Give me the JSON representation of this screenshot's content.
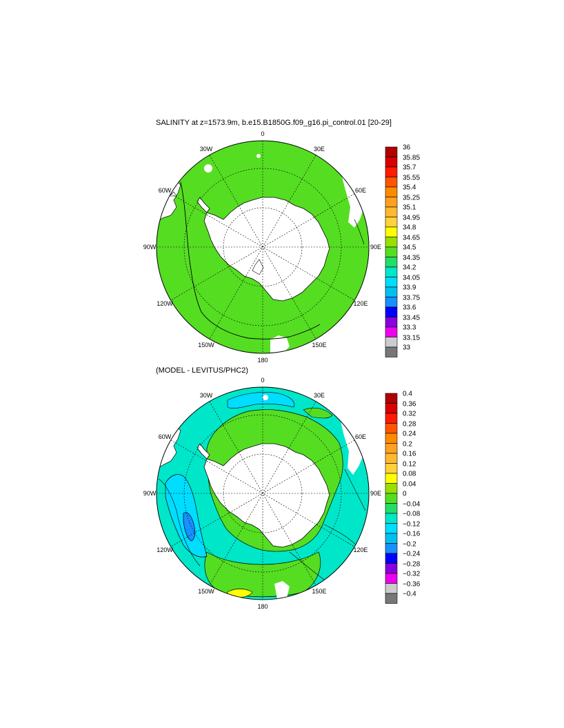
{
  "maps": [
    {
      "title": "SALINITY at z=1573.9m, b.e15.B1850G.f09_g16.pi_control.01 [20-29]",
      "lon_labels": [
        "0",
        "30E",
        "60E",
        "90E",
        "120E",
        "150E",
        "180",
        "150W",
        "120W",
        "90W",
        "60W",
        "30W"
      ],
      "colorbar_levels": [
        "36",
        "35.85",
        "35.7",
        "35.55",
        "35.4",
        "35.25",
        "35.1",
        "34.95",
        "34.8",
        "34.65",
        "34.5",
        "34.35",
        "34.2",
        "34.05",
        "33.9",
        "33.75",
        "33.6",
        "33.45",
        "33.3",
        "33.15",
        "33"
      ]
    },
    {
      "title": "(MODEL - LEVITUS/PHC2)",
      "lon_labels": [
        "0",
        "30E",
        "60E",
        "90E",
        "120E",
        "150E",
        "180",
        "150W",
        "120W",
        "90W",
        "60W",
        "30W"
      ],
      "colorbar_levels": [
        "0.4",
        "0.36",
        "0.32",
        "0.28",
        "0.24",
        "0.2",
        "0.16",
        "0.12",
        "0.08",
        "0.04",
        "0",
        "−0.04",
        "−0.08",
        "−0.12",
        "−0.16",
        "−0.2",
        "−0.24",
        "−0.28",
        "−0.32",
        "−0.36",
        "−0.4"
      ]
    }
  ],
  "colorbar_colors": [
    "#b00000",
    "#d80000",
    "#ff1a00",
    "#ff5500",
    "#ff8a00",
    "#ffa020",
    "#ffb830",
    "#ffd23c",
    "#ffff00",
    "#99e000",
    "#55dd22",
    "#22dd66",
    "#00e6c8",
    "#00ddff",
    "#00c0f0",
    "#1890ff",
    "#0000ff",
    "#8800dd",
    "#ee00ee",
    "#cccccc",
    "#777777"
  ],
  "colors": {
    "land": "#ffffff",
    "salinity_fill": "#55dd22",
    "diff_main": "#00e6c8",
    "diff_light": "#00ddff",
    "diff_pos": "#55dd22",
    "diff_neg": "#1890ff",
    "diff_hot": "#ffff00"
  }
}
